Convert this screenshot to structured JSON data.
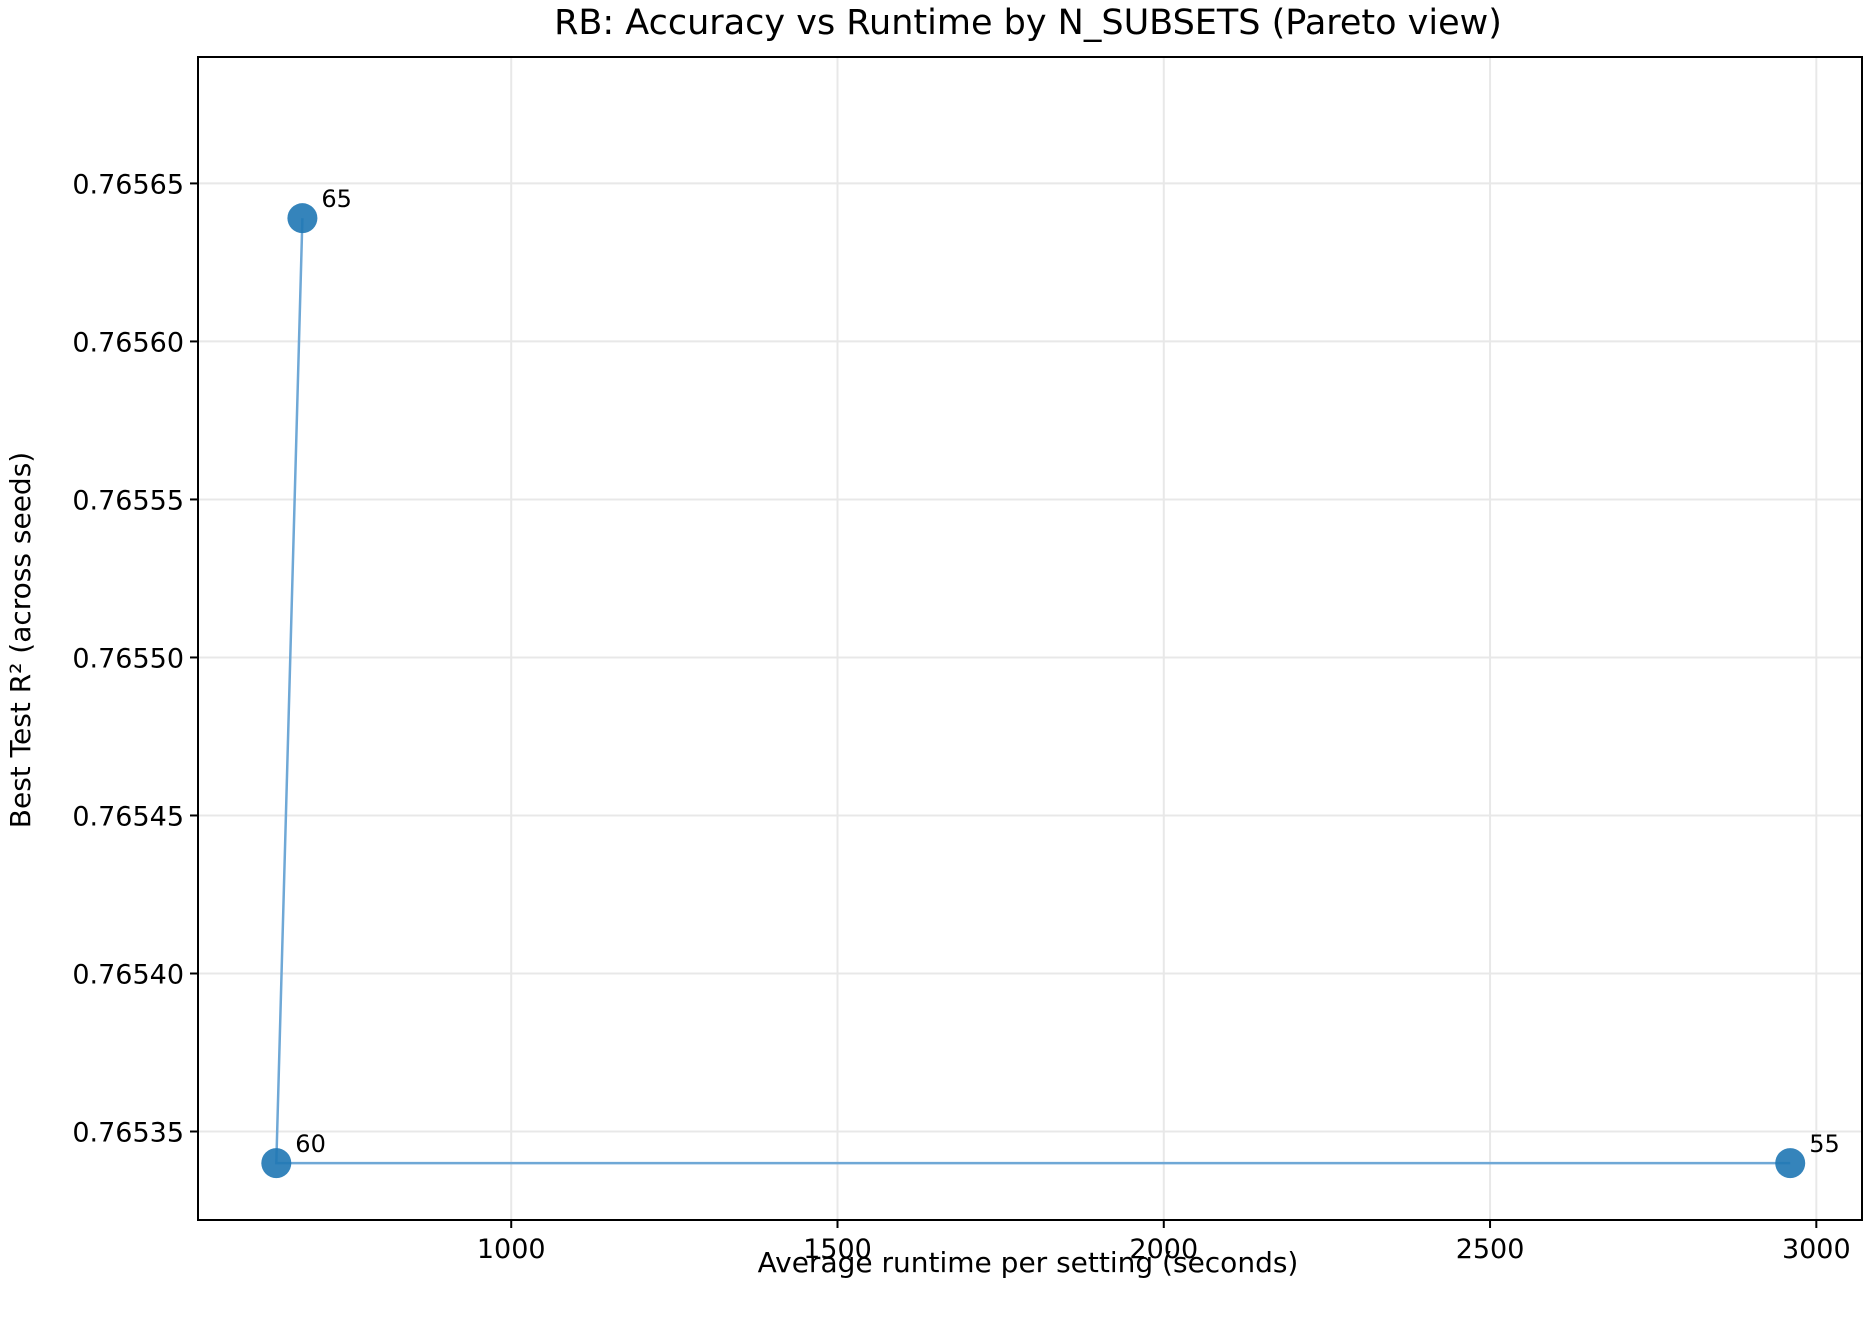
{
  "chart_data": {
    "type": "scatter",
    "title": "RB: Accuracy vs Runtime by N_SUBSETS (Pareto view)",
    "xlabel": "Average runtime per setting (seconds)",
    "ylabel": "Best Test R² (across seeds)",
    "xlim": [
      520,
      3070
    ],
    "ylim": [
      0.765322,
      0.76569
    ],
    "x_ticks": [
      1000,
      1500,
      2000,
      2500,
      3000
    ],
    "x_tick_labels": [
      "1000",
      "1500",
      "2000",
      "2500",
      "3000"
    ],
    "y_ticks": [
      0.76535,
      0.7654,
      0.76545,
      0.7655,
      0.76555,
      0.7656,
      0.76565
    ],
    "y_tick_labels": [
      "0.76535",
      "0.76540",
      "0.76545",
      "0.76550",
      "0.76555",
      "0.76560",
      "0.76565"
    ],
    "grid": true,
    "series": [
      {
        "points": [
          {
            "x": 640,
            "y": 0.76534,
            "label": "60"
          },
          {
            "x": 2960,
            "y": 0.76534,
            "label": "55"
          },
          {
            "x": 680,
            "y": 0.765639,
            "label": "65"
          }
        ],
        "pareto_line": [
          {
            "x": 680,
            "y": 0.765639
          },
          {
            "x": 640,
            "y": 0.76534
          },
          {
            "x": 2960,
            "y": 0.76534
          }
        ]
      }
    ],
    "colors": {
      "marker": "#1f77b4",
      "line": "#6fa8d6",
      "grid": "#e8e8e8",
      "axes": "#000000"
    }
  }
}
